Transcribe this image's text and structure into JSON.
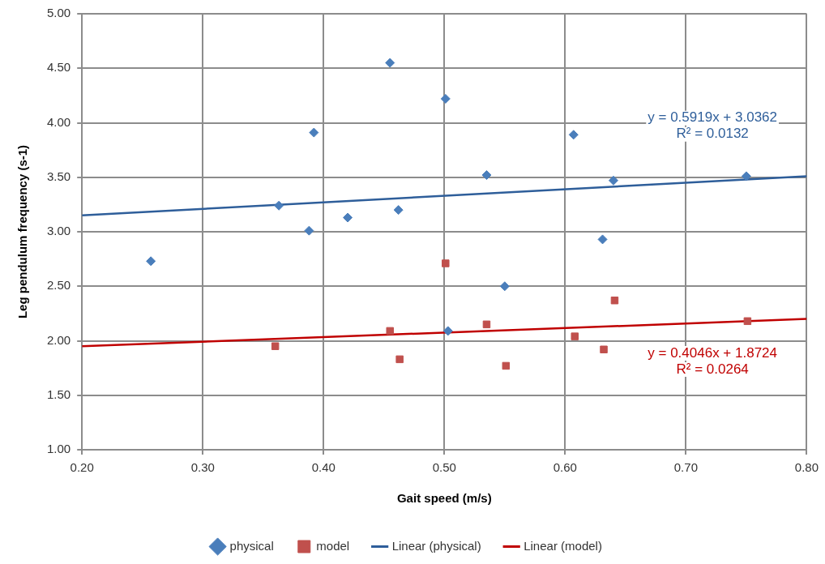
{
  "chart_data": {
    "type": "scatter",
    "xlabel": "Gait speed (m/s)",
    "ylabel": "Leg pendulum frequency (s-1)",
    "xlim": [
      0.2,
      0.8
    ],
    "ylim": [
      1,
      5
    ],
    "xticks": [
      {
        "value": 0.2,
        "label": "0.20"
      },
      {
        "value": 0.3,
        "label": "0.30"
      },
      {
        "value": 0.4,
        "label": "0.40"
      },
      {
        "value": 0.5,
        "label": "0.50"
      },
      {
        "value": 0.6,
        "label": "0.60"
      },
      {
        "value": 0.7,
        "label": "0.70"
      },
      {
        "value": 0.8,
        "label": "0.80"
      }
    ],
    "yticks": [
      {
        "value": 1,
        "label": "1.00"
      },
      {
        "value": 1.5,
        "label": "1.50"
      },
      {
        "value": 2,
        "label": "2.00"
      },
      {
        "value": 2.5,
        "label": "2.50"
      },
      {
        "value": 3,
        "label": "3.00"
      },
      {
        "value": 3.5,
        "label": "3.50"
      },
      {
        "value": 4,
        "label": "4.00"
      },
      {
        "value": 4.5,
        "label": "4.50"
      },
      {
        "value": 5,
        "label": "5.00"
      }
    ],
    "grid": true,
    "legend": "bottom",
    "series": [
      {
        "name": "physical",
        "marker": "diamond",
        "color": "#4a7ebb",
        "x": [
          0.257,
          0.363,
          0.388,
          0.392,
          0.42,
          0.455,
          0.462,
          0.501,
          0.535,
          0.607,
          0.64,
          0.631,
          0.75,
          0.55,
          0.503
        ],
        "values": [
          2.73,
          3.24,
          3.01,
          3.91,
          3.13,
          4.55,
          3.2,
          4.22,
          3.52,
          3.89,
          3.47,
          2.93,
          3.51,
          2.5,
          2.09
        ]
      },
      {
        "name": "model",
        "marker": "square",
        "color": "#c0504d",
        "x": [
          0.36,
          0.455,
          0.463,
          0.501,
          0.535,
          0.551,
          0.608,
          0.632,
          0.641,
          0.751
        ],
        "values": [
          1.95,
          2.09,
          1.83,
          2.71,
          2.15,
          1.77,
          2.04,
          1.92,
          2.37,
          2.18
        ]
      },
      {
        "name": "Linear (physical)",
        "type": "line",
        "marker": "none",
        "color": "#2e5e9a",
        "x": [
          0.2,
          0.8
        ],
        "values": [
          3.15,
          3.51
        ]
      },
      {
        "name": "Linear (model)",
        "type": "line",
        "marker": "none",
        "color": "#c00000",
        "x": [
          0.2,
          0.8
        ],
        "values": [
          1.95,
          2.2
        ]
      }
    ],
    "annotations": [
      "y = 0.5919x + 3.0362",
      "R² = 0.0132",
      "y = 0.4046x + 1.8724",
      "R² = 0.0264"
    ]
  }
}
